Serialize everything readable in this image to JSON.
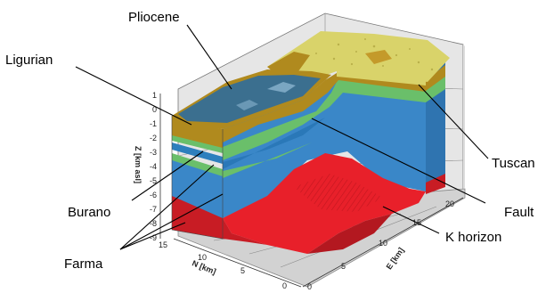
{
  "labels": {
    "pliocene": "Pliocene",
    "ligurian": "Ligurian",
    "tuscan": "Tuscan",
    "burano": "Burano",
    "fault": "Fault",
    "k_horizon": "K horizon",
    "farma": "Farma"
  },
  "axes": {
    "z_label": "Z [km asl]",
    "n_label": "N [km]",
    "e_label": "E [km]",
    "z_ticks": [
      "1",
      "0",
      "-1",
      "-2",
      "-3",
      "-4",
      "-5",
      "-6",
      "-7",
      "-8",
      "-9"
    ],
    "n_ticks": [
      "15",
      "10",
      "5",
      "0"
    ],
    "e_ticks": [
      "0",
      "5",
      "10",
      "15",
      "20"
    ]
  },
  "colors": {
    "pliocene": "#3b6f8f",
    "ligurian": "#b08a1e",
    "tuscan": "#d9d36a",
    "burano": "#6abf6a",
    "carbonate": "#3a87c8",
    "k_horizon": "#e8202a",
    "farma": "#c81c24",
    "floor": "#cfcfcf"
  }
}
